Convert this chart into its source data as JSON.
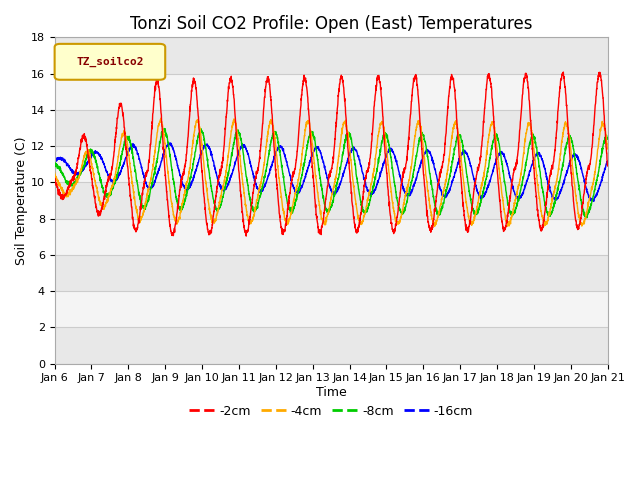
{
  "title": "Tonzi Soil CO2 Profile: Open (East) Temperatures",
  "xlabel": "Time",
  "ylabel": "Soil Temperature (C)",
  "ylim": [
    0,
    18
  ],
  "yticks": [
    0,
    2,
    4,
    6,
    8,
    10,
    12,
    14,
    16,
    18
  ],
  "x_tick_labels": [
    "Jan 6",
    "Jan 7",
    "Jan 8",
    "Jan 9",
    "Jan 10",
    "Jan 11",
    "Jan 12",
    "Jan 13",
    "Jan 14",
    "Jan 15",
    "Jan 16",
    "Jan 17",
    "Jan 18",
    "Jan 19",
    "Jan 20",
    "Jan 21"
  ],
  "legend_label": "TZ_soilco2",
  "series_labels": [
    "-2cm",
    "-4cm",
    "-8cm",
    "-16cm"
  ],
  "series_colors": [
    "#ff0000",
    "#ffaa00",
    "#00cc00",
    "#0000ff"
  ],
  "title_fontsize": 12,
  "axis_fontsize": 9,
  "tick_fontsize": 8,
  "band_colors": [
    "#e8e8e8",
    "#f4f4f4"
  ],
  "fig_bg": "#ffffff"
}
